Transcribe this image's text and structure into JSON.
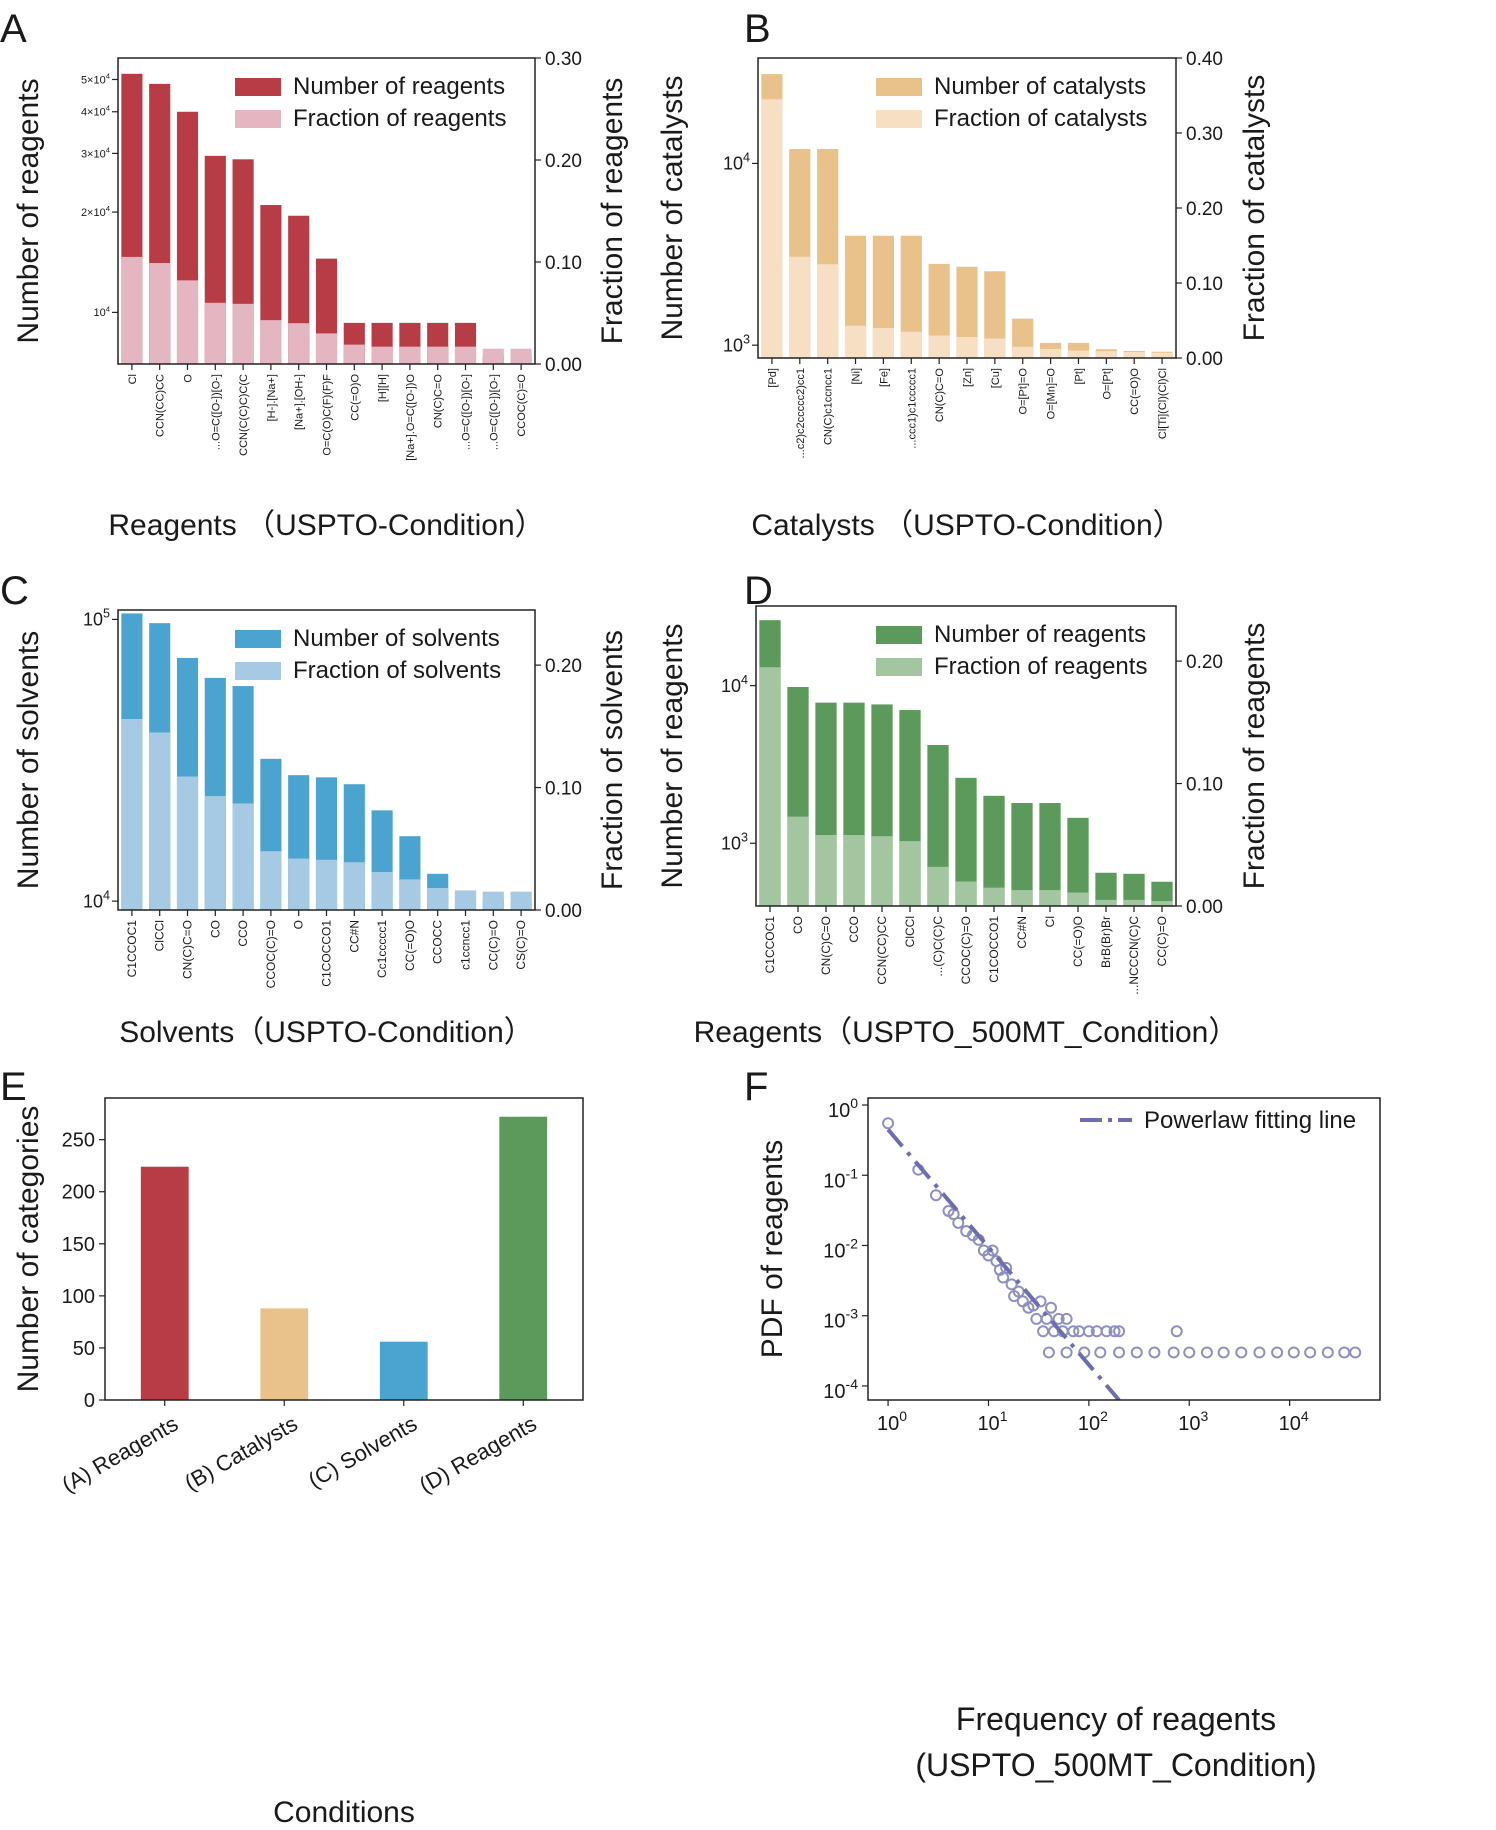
{
  "chart_data": [
    {
      "panel": "A",
      "type": "bar",
      "xlabel": "Reagents （USPTO-Condition）",
      "ylabel": "Number of reagents",
      "y2label": "Fraction of reagents",
      "yscale": "log",
      "ylim": [
        7000,
        58000
      ],
      "yticks": [
        {
          "v": 10000,
          "t": "10",
          "sup": "4"
        },
        {
          "v": 20000,
          "t": "2×10",
          "sup": "4"
        },
        {
          "v": 30000,
          "t": "3×10",
          "sup": "4"
        },
        {
          "v": 40000,
          "t": "4×10",
          "sup": "4"
        },
        {
          "v": 50000,
          "t": "5×10",
          "sup": "4"
        }
      ],
      "y2lim": [
        0,
        0.3
      ],
      "y2ticks": [
        "0.00",
        "0.10",
        "0.20",
        "0.30"
      ],
      "categories": [
        "Cl",
        "CCN(CC)CC",
        "O",
        "...O=C([O-])[O-]",
        "CCN(C(C)C)C(C",
        "[H-].[Na+]",
        "[Na+].[OH-]",
        "O=C(O)C(F)(F)F",
        "CC(=O)O",
        "[H][H]",
        "[Na+].O=C([O-])O",
        "CN(C)C=O",
        "...O=C([O-])[O-]",
        "...O=C([O-])[O-]",
        "CCOC(C)=O"
      ],
      "series": [
        {
          "name": "Number of reagents",
          "color": "#b83c45",
          "values": [
            52000,
            48500,
            40000,
            29500,
            28800,
            21000,
            19500,
            14500,
            9300,
            9300,
            9300,
            9300,
            9300,
            7400,
            7400
          ]
        },
        {
          "name": "Fraction of reagents",
          "color": "#e4b6c2",
          "values": [
            0.105,
            0.099,
            0.082,
            0.06,
            0.059,
            0.043,
            0.04,
            0.03,
            0.019,
            0.017,
            0.017,
            0.017,
            0.017,
            0.015,
            0.015
          ]
        }
      ],
      "legend": "top-right"
    },
    {
      "panel": "B",
      "type": "bar",
      "xlabel": "Catalysts （USPTO-Condition）",
      "ylabel": "Number of catalysts",
      "y2label": "Fraction of catalysts",
      "yscale": "log",
      "ylim": [
        850,
        38000
      ],
      "yticks": [
        {
          "v": 1000,
          "t": "10",
          "sup": "3"
        },
        {
          "v": 10000,
          "t": "10",
          "sup": "4"
        }
      ],
      "y2lim": [
        0,
        0.4
      ],
      "y2ticks": [
        "0.00",
        "0.10",
        "0.20",
        "0.30",
        "0.40"
      ],
      "categories": [
        "[Pd]",
        "...c2)c2ccccc2)cc1",
        "CN(C)c1ccncc1",
        "[Ni]",
        "[Fe]",
        "...ccc1)c1ccccc1",
        "CN(C)C=O",
        "[Zn]",
        "[Cu]",
        "O=[Pt]=O",
        "O=[Mn]=O",
        "[Pt]",
        "O=[Pt]",
        "CC(=O)O",
        "Cl[Ti](Cl)(Cl)Cl"
      ],
      "series": [
        {
          "name": "Number of catalysts",
          "color": "#e8c28a",
          "values": [
            31000,
            12000,
            12000,
            4000,
            4000,
            4000,
            2800,
            2700,
            2550,
            1400,
            1030,
            1030,
            950,
            930,
            920
          ]
        },
        {
          "name": "Fraction of catalysts",
          "color": "#f6dfc3",
          "values": [
            0.345,
            0.135,
            0.125,
            0.043,
            0.04,
            0.035,
            0.03,
            0.028,
            0.026,
            0.015,
            0.012,
            0.01,
            0.009,
            0.008,
            0.007
          ]
        }
      ],
      "legend": "top-right"
    },
    {
      "panel": "C",
      "type": "bar",
      "xlabel": "Solvents（USPTO-Condition）",
      "ylabel": "Number of solvents",
      "y2label": "Fraction of solvents",
      "yscale": "log",
      "ylim": [
        9300,
        108000
      ],
      "yticks": [
        {
          "v": 10000,
          "t": "10",
          "sup": "4"
        },
        {
          "v": 100000,
          "t": "10",
          "sup": "5"
        }
      ],
      "y2lim": [
        0,
        0.245
      ],
      "y2ticks": [
        "0.00",
        "0.10",
        "0.20"
      ],
      "categories": [
        "C1CCOC1",
        "ClCCl",
        "CN(C)C=O",
        "CO",
        "CCO",
        "CCOC(C)=O",
        "O",
        "C1COCCO1",
        "CC#N",
        "Cc1ccccc1",
        "CC(=O)O",
        "CCOCC",
        "c1ccncc1",
        "CC(C)=O",
        "CS(C)=O"
      ],
      "series": [
        {
          "name": "Number of solvents",
          "color": "#4ba3d0",
          "values": [
            105000,
            97000,
            73000,
            62000,
            58000,
            32000,
            28000,
            27500,
            26000,
            21000,
            17000,
            12500,
            10800,
            10200,
            10000
          ]
        },
        {
          "name": "Fraction of solvents",
          "color": "#a6cae4",
          "values": [
            0.156,
            0.145,
            0.109,
            0.093,
            0.087,
            0.048,
            0.042,
            0.041,
            0.039,
            0.031,
            0.025,
            0.018,
            0.016,
            0.015,
            0.015
          ]
        }
      ],
      "legend": "top-right"
    },
    {
      "panel": "D",
      "type": "bar",
      "xlabel": "Reagents（USPTO_500MT_Condition）",
      "ylabel": "Number of reagents",
      "y2label": "Fraction of reagents",
      "yscale": "log",
      "ylim": [
        400,
        32000
      ],
      "yticks": [
        {
          "v": 1000,
          "t": "10",
          "sup": "3"
        },
        {
          "v": 10000,
          "t": "10",
          "sup": "4"
        }
      ],
      "y2lim": [
        0,
        0.245
      ],
      "y2ticks": [
        "0.00",
        "0.10",
        "0.20"
      ],
      "categories": [
        "C1CCOC1",
        "CO",
        "CN(C)C=O",
        "CCO",
        "CCN(CC)CC",
        "ClCCl",
        "...(C)C(C)C",
        "CCOC(C)=O",
        "C1COCCO1",
        "CC#N",
        "Cl",
        "CC(=O)O",
        "BrB(Br)Br",
        "...NCCCN(C)C",
        "CC(C)=O"
      ],
      "series": [
        {
          "name": "Number of reagents",
          "color": "#5b9a5a",
          "values": [
            26000,
            9800,
            7800,
            7800,
            7600,
            7000,
            4200,
            2600,
            2000,
            1800,
            1800,
            1450,
            650,
            640,
            570
          ]
        },
        {
          "name": "Fraction of reagents",
          "color": "#a3c6a0",
          "values": [
            0.195,
            0.073,
            0.058,
            0.058,
            0.057,
            0.053,
            0.032,
            0.02,
            0.015,
            0.013,
            0.013,
            0.011,
            0.005,
            0.005,
            0.004
          ]
        }
      ],
      "legend": "top-right"
    },
    {
      "panel": "E",
      "type": "bar",
      "xlabel": "Conditions",
      "ylabel": "Number of categories",
      "ylim": [
        0,
        290
      ],
      "yticks": [
        0,
        50,
        100,
        150,
        200,
        250
      ],
      "categories": [
        "(A) Reagents",
        "(B) Catalysts",
        "(C) Solvents",
        "(D) Reagents"
      ],
      "values": [
        224,
        88,
        56,
        272
      ],
      "colors": [
        "#b83c45",
        "#e8c28a",
        "#4ba3d0",
        "#5b9a5a"
      ]
    },
    {
      "panel": "F",
      "type": "scatter",
      "xlabel": "Frequency of reagents",
      "xlabel2": "(USPTO_500MT_Condition)",
      "ylabel": "PDF of reagents",
      "xscale": "log",
      "yscale": "log",
      "xlim_log10": [
        -0.2,
        4.9
      ],
      "ylim_log10": [
        -4.2,
        0.1
      ],
      "xticks": [
        {
          "v": 0,
          "t": "10",
          "sup": "0"
        },
        {
          "v": 1,
          "t": "10",
          "sup": "1"
        },
        {
          "v": 2,
          "t": "10",
          "sup": "2"
        },
        {
          "v": 3,
          "t": "10",
          "sup": "3"
        },
        {
          "v": 4,
          "t": "10",
          "sup": "4"
        }
      ],
      "yticks": [
        {
          "v": 0,
          "t": "10",
          "sup": "0"
        },
        {
          "v": -1,
          "t": "10",
          "sup": "-1"
        },
        {
          "v": -2,
          "t": "10",
          "sup": "-2"
        },
        {
          "v": -3,
          "t": "10",
          "sup": "-3"
        },
        {
          "v": -4,
          "t": "10",
          "sup": "-4"
        }
      ],
      "points": [
        [
          1,
          0.55
        ],
        [
          2,
          0.12
        ],
        [
          3,
          0.052
        ],
        [
          4,
          0.031
        ],
        [
          4.5,
          0.028
        ],
        [
          5,
          0.021
        ],
        [
          6,
          0.016
        ],
        [
          7,
          0.014
        ],
        [
          8,
          0.012
        ],
        [
          9,
          0.0085
        ],
        [
          10,
          0.0072
        ],
        [
          11,
          0.0085
        ],
        [
          12,
          0.006
        ],
        [
          13,
          0.0045
        ],
        [
          14,
          0.0035
        ],
        [
          15,
          0.0048
        ],
        [
          17,
          0.0028
        ],
        [
          18,
          0.0019
        ],
        [
          20,
          0.0022
        ],
        [
          22,
          0.0016
        ],
        [
          25,
          0.0013
        ],
        [
          28,
          0.0014
        ],
        [
          30,
          0.0009
        ],
        [
          33,
          0.0016
        ],
        [
          35,
          0.0006
        ],
        [
          38,
          0.0009
        ],
        [
          42,
          0.0013
        ],
        [
          45,
          0.0006
        ],
        [
          50,
          0.0009
        ],
        [
          55,
          0.0006
        ],
        [
          60,
          0.0009
        ],
        [
          70,
          0.0006
        ],
        [
          80,
          0.0006
        ],
        [
          100,
          0.0006
        ],
        [
          120,
          0.0006
        ],
        [
          150,
          0.0006
        ],
        [
          180,
          0.0006
        ],
        [
          200,
          0.0006
        ],
        [
          750,
          0.0006
        ],
        [
          40,
          0.0003
        ],
        [
          60,
          0.0003
        ],
        [
          90,
          0.0003
        ],
        [
          130,
          0.0003
        ],
        [
          200,
          0.0003
        ],
        [
          300,
          0.0003
        ],
        [
          450,
          0.0003
        ],
        [
          700,
          0.0003
        ],
        [
          1000,
          0.0003
        ],
        [
          1500,
          0.0003
        ],
        [
          2200,
          0.0003
        ],
        [
          3300,
          0.0003
        ],
        [
          5000,
          0.0003
        ],
        [
          7500,
          0.0003
        ],
        [
          11000,
          0.0003
        ],
        [
          16000,
          0.0003
        ],
        [
          24000,
          0.0003
        ],
        [
          35000,
          0.0003
        ],
        [
          45000,
          0.0003
        ]
      ],
      "fit_line": {
        "name": "Powerlaw fitting line",
        "log_x": [
          0,
          2.3
        ],
        "log_y": [
          -0.35,
          -4.2
        ]
      },
      "color": "#8f8fc4",
      "legend": "top-right"
    }
  ],
  "panel_letters": [
    "A",
    "B",
    "C",
    "D",
    "E",
    "F"
  ]
}
